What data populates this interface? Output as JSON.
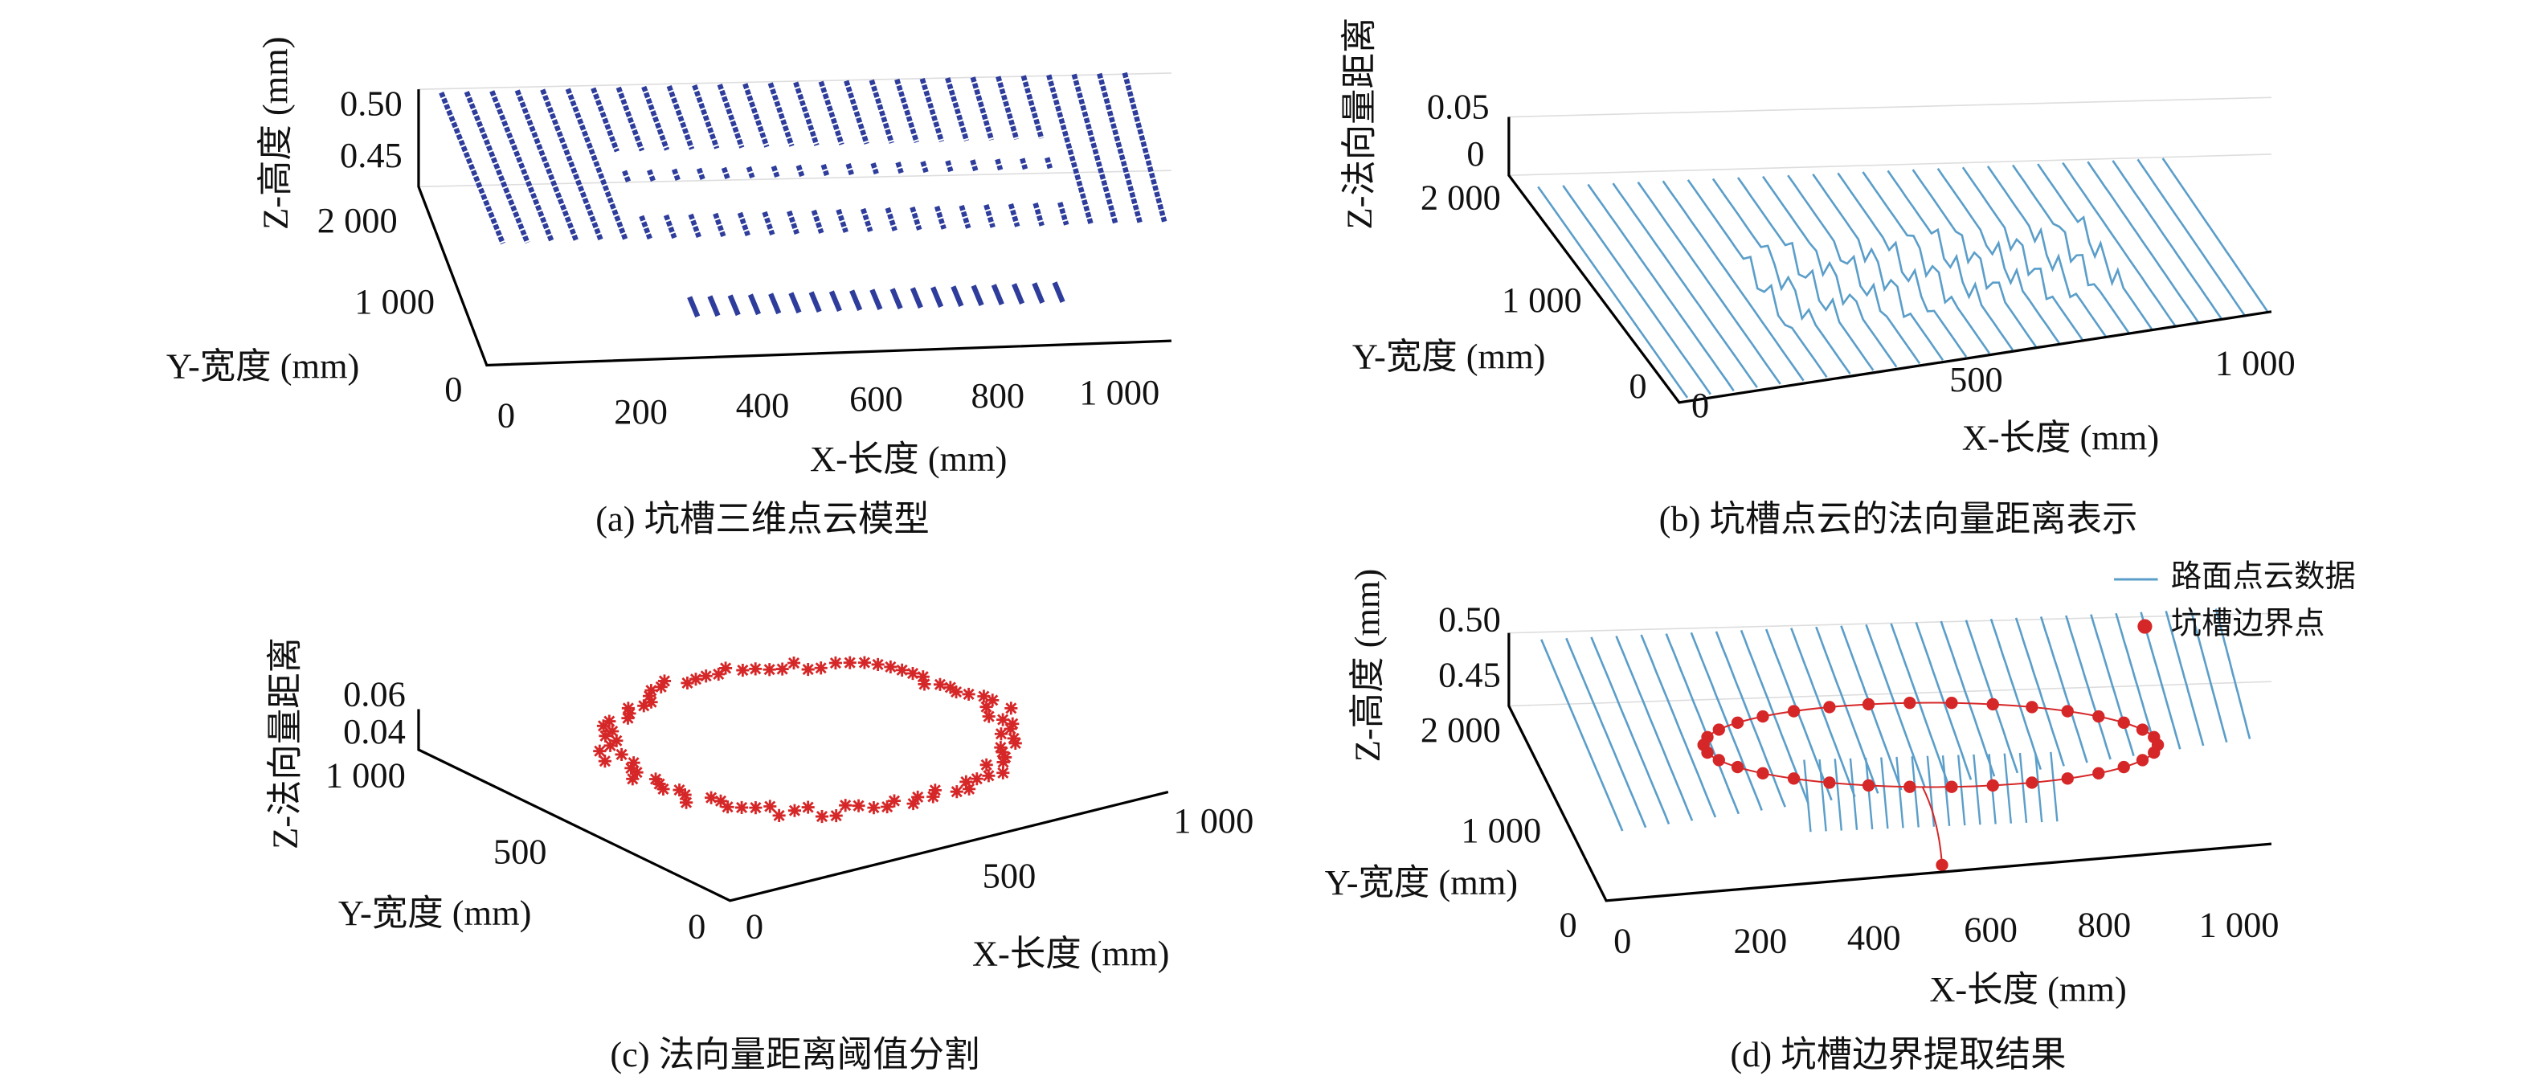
{
  "panels": [
    {
      "caption": "(a) 坑槽三维点云模型",
      "z_label": "Z-高度 (mm)",
      "y_label": "Y-宽度 (mm)",
      "x_label": "X-长度 (mm)",
      "z_ticks": [
        "0.50",
        "0.45"
      ],
      "y_ticks": [
        "2 000",
        "1 000",
        "0"
      ],
      "x_ticks": [
        "0",
        "200",
        "400",
        "600",
        "800",
        "1 000"
      ]
    },
    {
      "caption": "(b) 坑槽点云的法向量距离表示",
      "z_label": "Z-法向量距离",
      "y_label": "Y-宽度 (mm)",
      "x_label": "X-长度 (mm)",
      "z_ticks": [
        "0.05",
        "0"
      ],
      "y_ticks": [
        "2 000",
        "1 000",
        "0"
      ],
      "x_ticks": [
        "0",
        "500",
        "1 000"
      ]
    },
    {
      "caption": "(c) 法向量距离阈值分割",
      "z_label": "Z-法向量距离",
      "y_label": "Y-宽度 (mm)",
      "x_label": "X-长度 (mm)",
      "z_ticks": [
        "0.06",
        "0.04"
      ],
      "y_ticks": [
        "1 000",
        "500",
        "0"
      ],
      "x_ticks": [
        "0",
        "500",
        "1 000"
      ]
    },
    {
      "caption": "(d) 坑槽边界提取结果",
      "z_label": "Z-高度 (mm)",
      "y_label": "Y-宽度 (mm)",
      "x_label": "X-长度 (mm)",
      "z_ticks": [
        "0.50",
        "0.45"
      ],
      "y_ticks": [
        "2 000",
        "1 000",
        "0"
      ],
      "x_ticks": [
        "0",
        "200",
        "400",
        "600",
        "800",
        "1 000"
      ],
      "legend": [
        "路面点云数据",
        "坑槽边界点"
      ]
    }
  ]
}
